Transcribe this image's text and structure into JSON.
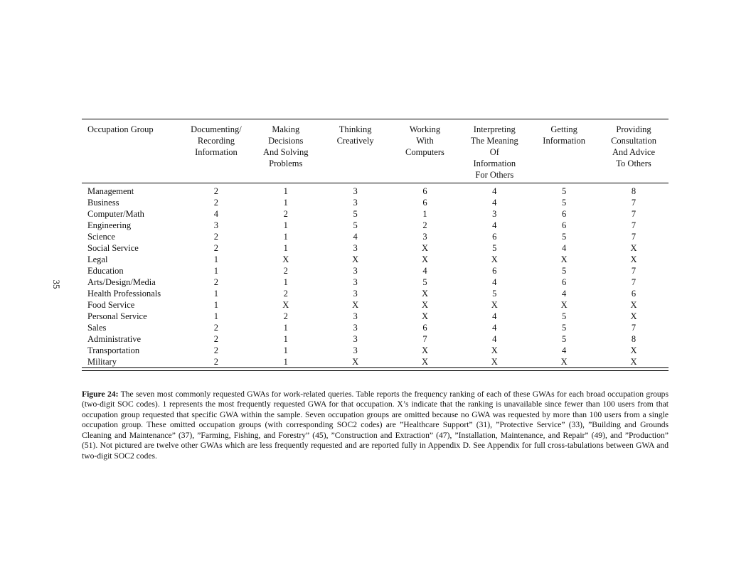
{
  "page": {
    "number": "35"
  },
  "table": {
    "columns": [
      "Occupation Group",
      "Documenting/\nRecording\nInformation",
      "Making\nDecisions\nAnd Solving\nProblems",
      "Thinking\nCreatively",
      "Working\nWith\nComputers",
      "Interpreting\nThe Meaning\nOf\nInformation\nFor Others",
      "Getting\nInformation",
      "Providing\nConsultation\nAnd Advice\nTo Others"
    ],
    "rows": [
      {
        "group": "Management",
        "values": [
          "2",
          "1",
          "3",
          "6",
          "4",
          "5",
          "8"
        ]
      },
      {
        "group": "Business",
        "values": [
          "2",
          "1",
          "3",
          "6",
          "4",
          "5",
          "7"
        ]
      },
      {
        "group": "Computer/Math",
        "values": [
          "4",
          "2",
          "5",
          "1",
          "3",
          "6",
          "7"
        ]
      },
      {
        "group": "Engineering",
        "values": [
          "3",
          "1",
          "5",
          "2",
          "4",
          "6",
          "7"
        ]
      },
      {
        "group": "Science",
        "values": [
          "2",
          "1",
          "4",
          "3",
          "6",
          "5",
          "7"
        ]
      },
      {
        "group": "Social Service",
        "values": [
          "2",
          "1",
          "3",
          "X",
          "5",
          "4",
          "X"
        ]
      },
      {
        "group": "Legal",
        "values": [
          "1",
          "X",
          "X",
          "X",
          "X",
          "X",
          "X"
        ]
      },
      {
        "group": "Education",
        "values": [
          "1",
          "2",
          "3",
          "4",
          "6",
          "5",
          "7"
        ]
      },
      {
        "group": "Arts/Design/Media",
        "values": [
          "2",
          "1",
          "3",
          "5",
          "4",
          "6",
          "7"
        ]
      },
      {
        "group": "Health Professionals",
        "values": [
          "1",
          "2",
          "3",
          "X",
          "5",
          "4",
          "6"
        ]
      },
      {
        "group": "Food Service",
        "values": [
          "1",
          "X",
          "X",
          "X",
          "X",
          "X",
          "X"
        ]
      },
      {
        "group": "Personal Service",
        "values": [
          "1",
          "2",
          "3",
          "X",
          "4",
          "5",
          "X"
        ]
      },
      {
        "group": "Sales",
        "values": [
          "2",
          "1",
          "3",
          "6",
          "4",
          "5",
          "7"
        ]
      },
      {
        "group": "Administrative",
        "values": [
          "2",
          "1",
          "3",
          "7",
          "4",
          "5",
          "8"
        ]
      },
      {
        "group": "Transportation",
        "values": [
          "2",
          "1",
          "3",
          "X",
          "X",
          "4",
          "X"
        ]
      },
      {
        "group": "Military",
        "values": [
          "2",
          "1",
          "X",
          "X",
          "X",
          "X",
          "X"
        ]
      }
    ]
  },
  "caption": {
    "label": "Figure 24:",
    "text": "The seven most commonly requested GWAs for work-related queries. Table reports the frequency ranking of each of these GWAs for each broad occupation groups (two-digit SOC codes). 1 represents the most frequently requested GWA for that occupation. X’s indicate that the ranking is unavailable since fewer than 100 users from that occupation group requested that specific GWA within the sample. Seven occupation groups are omitted because no GWA was requested by more than 100 users from a single occupation group. These omitted occupation groups (with corresponding SOC2 codes) are ”Healthcare Support” (31), ”Protective Service” (33), ”Building and Grounds Cleaning and Maintenance” (37), ”Farming, Fishing, and Forestry” (45), ”Construction and Extraction” (47), ”Installation, Maintenance, and Repair” (49), and ”Production” (51). Not pictured are twelve other GWAs which are less frequently requested and are reported fully in Appendix D. See Appendix for full cross-tabulations between GWA and two-digit SOC2 codes."
  }
}
